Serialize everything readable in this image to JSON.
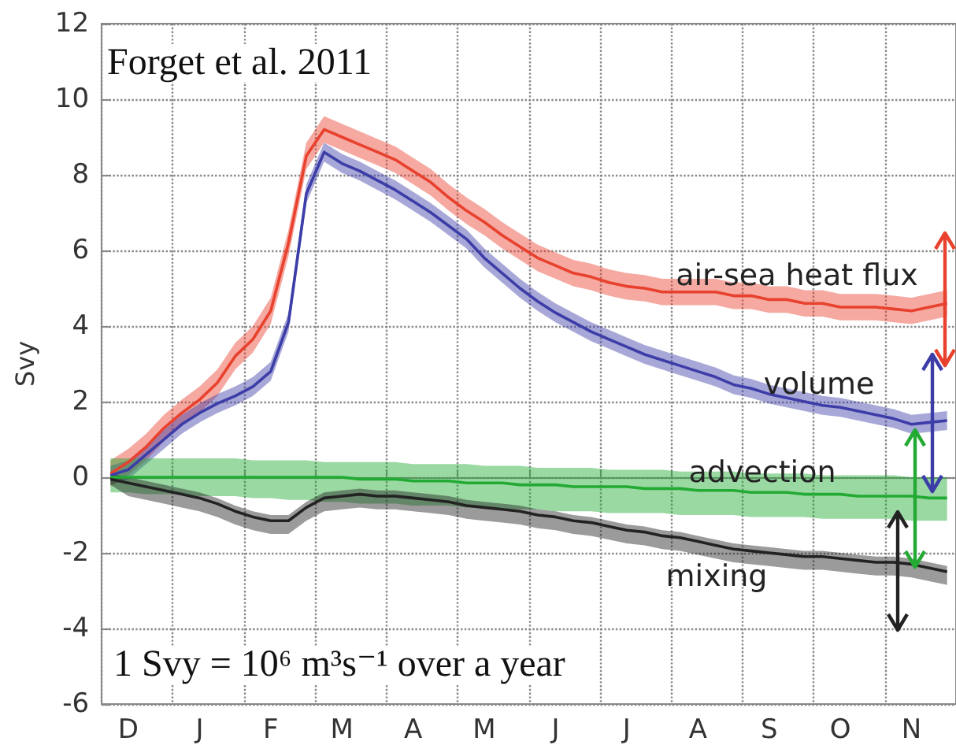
{
  "chart_data": {
    "type": "line",
    "ylabel": "Svy",
    "annotations": [
      "Forget et al. 2011",
      "1 Svy = 10⁶ m³s⁻¹ over a year"
    ],
    "categories": [
      null,
      "D",
      null,
      null,
      null,
      "J",
      null,
      null,
      null,
      "F",
      null,
      null,
      null,
      "M",
      null,
      null,
      null,
      "A",
      null,
      null,
      null,
      "M",
      null,
      null,
      null,
      "J",
      null,
      null,
      null,
      "J",
      null,
      null,
      null,
      "A",
      null,
      null,
      null,
      "S",
      null,
      null,
      null,
      "O",
      null,
      null,
      null,
      "N",
      null,
      null
    ],
    "ylim": [
      -6,
      12
    ],
    "yticks": [
      -6,
      -4,
      -2,
      0,
      2,
      4,
      6,
      8,
      10,
      12
    ],
    "grid": true,
    "series": [
      {
        "name": "air-sea heat flux",
        "color": "#e8412e",
        "values": [
          0.1,
          0.4,
          0.8,
          1.3,
          1.7,
          2.05,
          2.5,
          3.2,
          3.65,
          4.4,
          6.2,
          8.5,
          9.2,
          9.0,
          8.8,
          8.6,
          8.4,
          8.1,
          7.8,
          7.4,
          7.05,
          6.75,
          6.4,
          6.1,
          5.8,
          5.6,
          5.4,
          5.3,
          5.15,
          5.05,
          5.0,
          4.9,
          4.9,
          4.9,
          4.9,
          4.8,
          4.8,
          4.7,
          4.7,
          4.6,
          4.6,
          4.5,
          4.5,
          4.5,
          4.45,
          4.4,
          4.5,
          4.6
        ],
        "lower": [
          -0.25,
          0.05,
          0.45,
          0.95,
          1.35,
          1.7,
          2.15,
          2.85,
          3.3,
          4.05,
          5.85,
          8.15,
          8.85,
          8.65,
          8.45,
          8.25,
          8.05,
          7.75,
          7.45,
          7.05,
          6.7,
          6.4,
          6.05,
          5.75,
          5.45,
          5.25,
          5.05,
          4.95,
          4.8,
          4.7,
          4.65,
          4.55,
          4.55,
          4.55,
          4.55,
          4.45,
          4.45,
          4.35,
          4.35,
          4.25,
          4.25,
          4.15,
          4.15,
          4.15,
          4.1,
          4.05,
          4.15,
          4.25
        ],
        "upper": [
          0.45,
          0.75,
          1.15,
          1.65,
          2.05,
          2.4,
          2.85,
          3.55,
          4.0,
          4.75,
          6.55,
          8.85,
          9.55,
          9.35,
          9.15,
          8.95,
          8.75,
          8.45,
          8.15,
          7.75,
          7.4,
          7.1,
          6.75,
          6.45,
          6.15,
          5.95,
          5.75,
          5.65,
          5.5,
          5.4,
          5.35,
          5.25,
          5.25,
          5.25,
          5.25,
          5.15,
          5.15,
          5.05,
          5.05,
          4.95,
          4.95,
          4.85,
          4.85,
          4.85,
          4.8,
          4.75,
          4.85,
          4.95
        ]
      },
      {
        "name": "volume",
        "color": "#3d3da8",
        "values": [
          0.05,
          0.2,
          0.6,
          1.0,
          1.4,
          1.7,
          1.95,
          2.15,
          2.4,
          2.8,
          4.1,
          7.5,
          8.6,
          8.3,
          8.1,
          7.85,
          7.6,
          7.3,
          7.0,
          6.65,
          6.3,
          5.8,
          5.4,
          5.0,
          4.65,
          4.35,
          4.1,
          3.85,
          3.65,
          3.45,
          3.25,
          3.1,
          2.95,
          2.8,
          2.65,
          2.45,
          2.35,
          2.2,
          2.1,
          2.0,
          1.9,
          1.85,
          1.75,
          1.65,
          1.55,
          1.4,
          1.45,
          1.5
        ],
        "lower": [
          -0.2,
          -0.05,
          0.35,
          0.75,
          1.15,
          1.45,
          1.7,
          1.9,
          2.15,
          2.55,
          3.85,
          7.25,
          8.35,
          8.05,
          7.85,
          7.6,
          7.35,
          7.05,
          6.75,
          6.4,
          6.05,
          5.55,
          5.15,
          4.75,
          4.4,
          4.1,
          3.85,
          3.6,
          3.4,
          3.2,
          3.0,
          2.85,
          2.7,
          2.55,
          2.4,
          2.2,
          2.1,
          1.95,
          1.85,
          1.75,
          1.65,
          1.6,
          1.5,
          1.4,
          1.3,
          1.15,
          1.2,
          1.25
        ],
        "upper": [
          0.3,
          0.45,
          0.85,
          1.25,
          1.65,
          1.95,
          2.2,
          2.4,
          2.65,
          3.05,
          4.35,
          7.75,
          8.85,
          8.55,
          8.35,
          8.1,
          7.85,
          7.55,
          7.25,
          6.9,
          6.55,
          6.05,
          5.65,
          5.25,
          4.9,
          4.6,
          4.35,
          4.1,
          3.9,
          3.7,
          3.5,
          3.35,
          3.2,
          3.05,
          2.9,
          2.7,
          2.6,
          2.45,
          2.35,
          2.25,
          2.15,
          2.1,
          2.0,
          1.9,
          1.8,
          1.65,
          1.7,
          1.75
        ]
      },
      {
        "name": "advection",
        "color": "#22aa33",
        "values": [
          0,
          0,
          0,
          0,
          0,
          0,
          0,
          0,
          0,
          0,
          0,
          0,
          0,
          0,
          -0.05,
          -0.05,
          -0.05,
          -0.1,
          -0.1,
          -0.1,
          -0.15,
          -0.15,
          -0.15,
          -0.2,
          -0.2,
          -0.2,
          -0.25,
          -0.25,
          -0.25,
          -0.25,
          -0.3,
          -0.3,
          -0.3,
          -0.35,
          -0.35,
          -0.35,
          -0.4,
          -0.4,
          -0.4,
          -0.45,
          -0.45,
          -0.45,
          -0.5,
          -0.5,
          -0.5,
          -0.5,
          -0.55,
          -0.55
        ],
        "lower": [
          -0.4,
          -0.4,
          -0.45,
          -0.45,
          -0.45,
          -0.5,
          -0.5,
          -0.5,
          -0.55,
          -0.55,
          -0.6,
          -0.6,
          -0.65,
          -0.65,
          -0.7,
          -0.7,
          -0.7,
          -0.75,
          -0.75,
          -0.75,
          -0.8,
          -0.8,
          -0.85,
          -0.85,
          -0.85,
          -0.9,
          -0.9,
          -0.9,
          -0.95,
          -0.95,
          -0.95,
          -0.95,
          -1.0,
          -1.0,
          -1.0,
          -1.0,
          -1.05,
          -1.05,
          -1.05,
          -1.05,
          -1.1,
          -1.1,
          -1.1,
          -1.1,
          -1.1,
          -1.15,
          -1.15,
          -1.15
        ],
        "upper": [
          0.5,
          0.5,
          0.5,
          0.5,
          0.5,
          0.5,
          0.5,
          0.5,
          0.45,
          0.45,
          0.45,
          0.45,
          0.4,
          0.4,
          0.4,
          0.4,
          0.4,
          0.35,
          0.35,
          0.35,
          0.35,
          0.3,
          0.3,
          0.3,
          0.25,
          0.25,
          0.25,
          0.25,
          0.2,
          0.2,
          0.2,
          0.2,
          0.15,
          0.15,
          0.15,
          0.15,
          0.1,
          0.1,
          0.1,
          0.1,
          0.05,
          0.05,
          0.05,
          0.05,
          0.05,
          0,
          0,
          0
        ]
      },
      {
        "name": "mixing",
        "color": "#222222",
        "values": [
          -0.05,
          -0.15,
          -0.25,
          -0.35,
          -0.45,
          -0.55,
          -0.7,
          -0.9,
          -1.05,
          -1.15,
          -1.15,
          -0.8,
          -0.55,
          -0.5,
          -0.45,
          -0.5,
          -0.5,
          -0.55,
          -0.6,
          -0.65,
          -0.75,
          -0.8,
          -0.85,
          -0.9,
          -1.0,
          -1.05,
          -1.15,
          -1.2,
          -1.3,
          -1.4,
          -1.45,
          -1.55,
          -1.6,
          -1.7,
          -1.8,
          -1.9,
          -1.95,
          -2.0,
          -2.05,
          -2.1,
          -2.1,
          -2.15,
          -2.2,
          -2.25,
          -2.25,
          -2.3,
          -2.4,
          -2.5
        ],
        "lower": [
          -0.2,
          -0.5,
          -0.6,
          -0.7,
          -0.8,
          -0.9,
          -1.05,
          -1.25,
          -1.4,
          -1.5,
          -1.5,
          -1.15,
          -0.9,
          -0.85,
          -0.8,
          -0.85,
          -0.85,
          -0.9,
          -0.95,
          -1.0,
          -1.1,
          -1.15,
          -1.2,
          -1.25,
          -1.35,
          -1.4,
          -1.5,
          -1.55,
          -1.65,
          -1.75,
          -1.8,
          -1.9,
          -1.95,
          -2.05,
          -2.15,
          -2.25,
          -2.3,
          -2.35,
          -2.4,
          -2.45,
          -2.45,
          -2.5,
          -2.55,
          -2.6,
          -2.6,
          -2.65,
          -2.75,
          -2.85
        ],
        "upper": [
          0.1,
          0,
          -0.1,
          -0.2,
          -0.3,
          -0.4,
          -0.55,
          -0.75,
          -0.9,
          -1.0,
          -1.0,
          -0.65,
          -0.4,
          -0.35,
          -0.3,
          -0.35,
          -0.35,
          -0.4,
          -0.45,
          -0.5,
          -0.6,
          -0.65,
          -0.7,
          -0.75,
          -0.85,
          -0.9,
          -1.0,
          -1.05,
          -1.15,
          -1.25,
          -1.3,
          -1.4,
          -1.45,
          -1.55,
          -1.65,
          -1.75,
          -1.8,
          -1.85,
          -1.9,
          -1.95,
          -1.95,
          -2.0,
          -2.05,
          -2.1,
          -2.1,
          -2.15,
          -2.25,
          -2.35
        ]
      }
    ]
  }
}
